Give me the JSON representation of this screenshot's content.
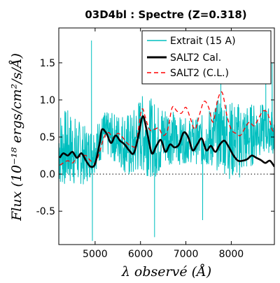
{
  "chart_data": {
    "type": "line",
    "title": "03D4bl : Spectre (Z=0.318)",
    "xlabel": "λ observé (Å)",
    "ylabel": "Flux (10⁻¹⁸ ergs/cm²/s/Å)",
    "xlim": [
      4200,
      8950
    ],
    "ylim": [
      -0.95,
      1.97
    ],
    "xticks": [
      5000,
      6000,
      7000,
      8000
    ],
    "xtick_labels": [
      "5000",
      "6000",
      "7000",
      "8000"
    ],
    "yticks": [
      -0.5,
      0.0,
      0.5,
      1.0,
      1.5
    ],
    "ytick_labels": [
      "-0.5",
      "0.0",
      "0.5",
      "1.0",
      "1.5"
    ],
    "legend_position": "top-right",
    "zero_line": true,
    "series": [
      {
        "name": "Extrait (15 A)",
        "color": "#00bfbf",
        "style": "solid",
        "kind": "noisy",
        "spikes": [
          {
            "x": 4920,
            "y": 1.8
          },
          {
            "x": 4940,
            "y": -0.9
          },
          {
            "x": 6310,
            "y": -0.85
          },
          {
            "x": 7370,
            "y": -0.62
          },
          {
            "x": 7770,
            "y": 1.25
          },
          {
            "x": 8760,
            "y": 1.72
          },
          {
            "x": 8900,
            "y": 1.5
          }
        ],
        "x": [
          4200,
          4400,
          4600,
          4800,
          5000,
          5200,
          5400,
          5600,
          5800,
          6000,
          6200,
          6400,
          6600,
          6800,
          7000,
          7200,
          7400,
          7600,
          7800,
          8000,
          8200,
          8400,
          8600,
          8800,
          8950
        ],
        "y": [
          0.35,
          0.35,
          0.3,
          0.25,
          0.35,
          0.55,
          0.5,
          0.45,
          0.35,
          0.55,
          0.5,
          0.45,
          0.55,
          0.45,
          0.45,
          0.45,
          0.45,
          0.5,
          0.55,
          0.45,
          0.45,
          0.5,
          0.6,
          0.6,
          0.55
        ]
      },
      {
        "name": "SALT2 Cal.",
        "color": "#000000",
        "style": "solid",
        "kind": "smooth",
        "x": [
          4220,
          4300,
          4400,
          4500,
          4600,
          4700,
          4800,
          4900,
          5000,
          5100,
          5150,
          5250,
          5350,
          5450,
          5550,
          5650,
          5750,
          5850,
          5950,
          6050,
          6150,
          6250,
          6350,
          6450,
          6550,
          6650,
          6750,
          6850,
          6950,
          7050,
          7150,
          7250,
          7350,
          7450,
          7550,
          7650,
          7750,
          7850,
          7950,
          8050,
          8150,
          8250,
          8350,
          8450,
          8550,
          8650,
          8750,
          8850,
          8950
        ],
        "y": [
          0.22,
          0.28,
          0.25,
          0.3,
          0.22,
          0.28,
          0.18,
          0.1,
          0.14,
          0.42,
          0.6,
          0.55,
          0.42,
          0.52,
          0.45,
          0.4,
          0.32,
          0.28,
          0.5,
          0.78,
          0.55,
          0.28,
          0.38,
          0.46,
          0.3,
          0.4,
          0.36,
          0.4,
          0.56,
          0.5,
          0.32,
          0.4,
          0.48,
          0.32,
          0.38,
          0.3,
          0.4,
          0.45,
          0.36,
          0.25,
          0.18,
          0.18,
          0.2,
          0.25,
          0.22,
          0.19,
          0.15,
          0.18,
          0.1
        ]
      },
      {
        "name": "SALT2 (C.L.)",
        "color": "#ff0000",
        "style": "dashed",
        "kind": "smooth",
        "x": [
          4220,
          4300,
          4400,
          4500,
          4600,
          4700,
          4800,
          4900,
          5000,
          5100,
          5200,
          5300,
          5400,
          5500,
          5600,
          5700,
          5800,
          5900,
          6000,
          6050,
          6100,
          6200,
          6300,
          6400,
          6500,
          6600,
          6700,
          6800,
          6900,
          7000,
          7100,
          7200,
          7300,
          7400,
          7500,
          7600,
          7700,
          7800,
          7900,
          8000,
          8100,
          8200,
          8300,
          8400,
          8500,
          8600,
          8700,
          8800,
          8900,
          8950
        ],
        "y": [
          0.12,
          0.15,
          0.18,
          0.15,
          0.22,
          0.24,
          0.25,
          0.18,
          0.15,
          0.3,
          0.5,
          0.56,
          0.48,
          0.55,
          0.5,
          0.42,
          0.38,
          0.4,
          0.8,
          0.88,
          0.78,
          0.6,
          0.6,
          0.62,
          0.52,
          0.6,
          0.9,
          0.85,
          0.82,
          0.9,
          0.75,
          0.6,
          0.8,
          0.98,
          0.9,
          0.7,
          1.0,
          1.1,
          0.8,
          0.6,
          0.55,
          0.52,
          0.62,
          0.7,
          0.65,
          0.75,
          0.85,
          0.82,
          0.6,
          0.58
        ]
      }
    ]
  }
}
